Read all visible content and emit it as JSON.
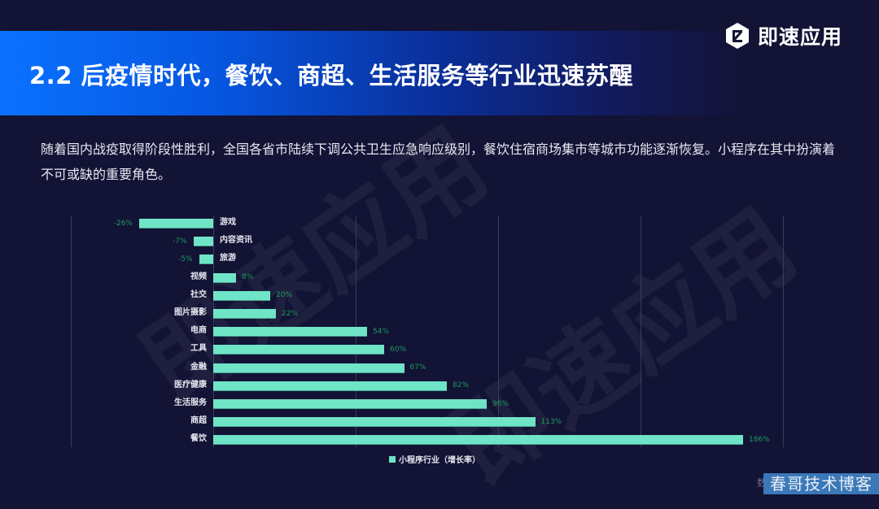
{
  "header": {
    "title": "2.2 后疫情时代，餐饮、商超、生活服务等行业迅速苏醒",
    "logo_text": "即速应用",
    "logo_icon": "hexagon-z-logo-icon"
  },
  "description": "随着国内战疫取得阶段性胜利，全国各省市陆续下调公共卫生应急响应级别，餐饮住宿商场集市等城市功能逐渐恢复。小程序在其中扮演着不可或缺的重要角色。",
  "watermark_text": "即速应用",
  "footer": {
    "badge_text": "春哥技术博客",
    "ghost_text": "数"
  },
  "colors": {
    "background": "#121335",
    "banner_start": "#0a72ff",
    "bar": "#70e4c6",
    "value_label": "#1f9a5c",
    "gridline": "#3a3c5c"
  },
  "chart_data": {
    "type": "bar",
    "orientation": "horizontal",
    "title": "",
    "xlabel": "",
    "ylabel": "",
    "categories": [
      "游戏",
      "内容资讯",
      "旅游",
      "视频",
      "社交",
      "图片摄影",
      "电商",
      "工具",
      "金融",
      "医疗健康",
      "生活服务",
      "商超",
      "餐饮"
    ],
    "series": [
      {
        "name": "小程序行业（增长率）",
        "values": [
          -26,
          -7,
          -5,
          8,
          20,
          22,
          54,
          60,
          67,
          82,
          96,
          113,
          186
        ],
        "labels": [
          "-26%",
          "-7%",
          "-5%",
          "8%",
          "20%",
          "22%",
          "54%",
          "60%",
          "67%",
          "82%",
          "96%",
          "113%",
          "186%"
        ]
      }
    ],
    "xlim": [
      -50,
      200
    ],
    "grid_x_values": [
      -50,
      0,
      50,
      100,
      150,
      200
    ],
    "grid": true,
    "tick_labels_shown": false,
    "legend_position": "bottom",
    "legend": [
      "小程序行业（增长率）"
    ]
  }
}
